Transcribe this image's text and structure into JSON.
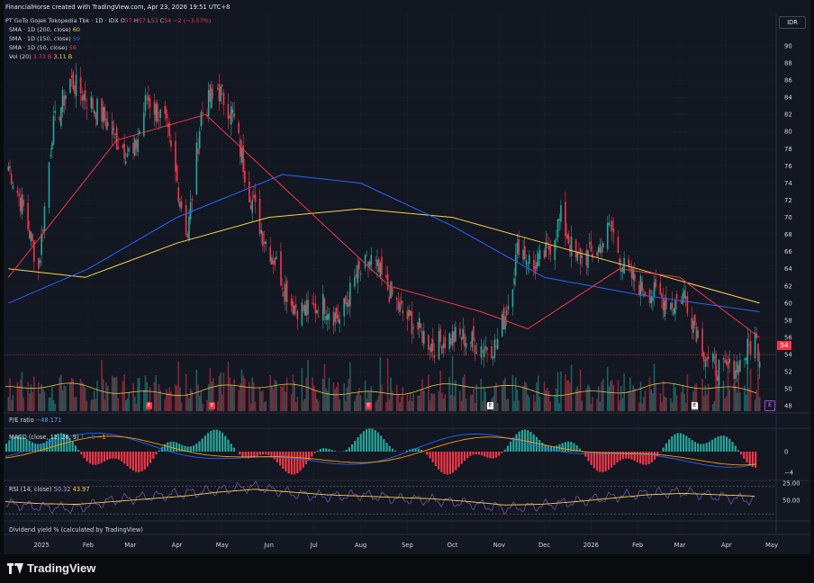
{
  "header": {
    "text": "FinancialHorse created with TradingView.com, Apr 23, 2026 19:51 UTC+8"
  },
  "symbol": {
    "name": "PT GoTo Gojek Tokopedia Tbk · 1D · IDX",
    "o_label": "O",
    "o": "57",
    "h_label": "H",
    "h": "57",
    "l_label": "L",
    "l": "53",
    "c_label": "C",
    "c": "54",
    "change": "−2 (−3.57%)"
  },
  "indicators": {
    "sma200": {
      "label": "SMA · 1D (200, close)",
      "value": "60",
      "color": "#f5d347"
    },
    "sma150": {
      "label": "SMA · 1D (150, close)",
      "value": "59",
      "color": "#2962ff"
    },
    "sma50": {
      "label": "SMA · 1D (50, close)",
      "value": "56",
      "color": "#f23645"
    },
    "vol": {
      "label": "Vol (20)",
      "value1": "3.73 B",
      "value2": "3.11 B"
    }
  },
  "currency": "IDR",
  "last_price": "54",
  "pe": {
    "label": "P/E ratio",
    "value": "−48.171"
  },
  "macd": {
    "label": "MACD (close, 12, 26, 9)",
    "v1": "1",
    "v2": "−0",
    "v3": "−1"
  },
  "rsi": {
    "label": "RSI (14, close)",
    "v1": "50.32",
    "v2": "43.97"
  },
  "dividend": {
    "label": "Dividend yield % (calculated by TradingView)"
  },
  "events": {
    "earnings_letter": "E",
    "axis_letter": "E"
  },
  "logo": {
    "text": "TradingView"
  },
  "colors": {
    "up": "#26a69a",
    "down": "#f23645",
    "sma200": "#f5d347",
    "sma150": "#2962ff",
    "sma50": "#f23645",
    "rsi": "#7e57c2"
  },
  "chart_data": [
    {
      "type": "candlestick",
      "title": "PT GoTo Gojek Tokopedia Tbk · 1D · IDX",
      "y_ticks": [
        48,
        50,
        52,
        54,
        56,
        58,
        60,
        62,
        64,
        66,
        68,
        70,
        72,
        74,
        76,
        78,
        80,
        82,
        84,
        86,
        88,
        90
      ],
      "ylim": [
        46,
        92
      ],
      "x_ticks": [
        "2025",
        "Feb",
        "Mar",
        "Apr",
        "May",
        "Jun",
        "Jul",
        "Aug",
        "Sep",
        "Oct",
        "Nov",
        "Dec",
        "2026",
        "Feb",
        "Mar",
        "Apr",
        "May"
      ],
      "close_series_approx": [
        {
          "date": "2024-12-10",
          "close": 76
        },
        {
          "date": "2024-12-20",
          "close": 71
        },
        {
          "date": "2024-12-30",
          "close": 64
        },
        {
          "date": "2025-01-08",
          "close": 80
        },
        {
          "date": "2025-01-20",
          "close": 86
        },
        {
          "date": "2025-01-30",
          "close": 84
        },
        {
          "date": "2025-02-10",
          "close": 82
        },
        {
          "date": "2025-02-20",
          "close": 79
        },
        {
          "date": "2025-03-03",
          "close": 77
        },
        {
          "date": "2025-03-12",
          "close": 84
        },
        {
          "date": "2025-03-24",
          "close": 81
        },
        {
          "date": "2025-04-08",
          "close": 68
        },
        {
          "date": "2025-04-17",
          "close": 82
        },
        {
          "date": "2025-04-28",
          "close": 85
        },
        {
          "date": "2025-05-08",
          "close": 82
        },
        {
          "date": "2025-05-19",
          "close": 73
        },
        {
          "date": "2025-05-28",
          "close": 68
        },
        {
          "date": "2025-06-05",
          "close": 65
        },
        {
          "date": "2025-06-16",
          "close": 60
        },
        {
          "date": "2025-06-26",
          "close": 59
        },
        {
          "date": "2025-07-08",
          "close": 60
        },
        {
          "date": "2025-07-18",
          "close": 58
        },
        {
          "date": "2025-07-29",
          "close": 63
        },
        {
          "date": "2025-08-08",
          "close": 65
        },
        {
          "date": "2025-08-18",
          "close": 62
        },
        {
          "date": "2025-08-28",
          "close": 59
        },
        {
          "date": "2025-09-08",
          "close": 57
        },
        {
          "date": "2025-09-18",
          "close": 55
        },
        {
          "date": "2025-09-29",
          "close": 56
        },
        {
          "date": "2025-10-08",
          "close": 56
        },
        {
          "date": "2025-10-20",
          "close": 55
        },
        {
          "date": "2025-10-30",
          "close": 55
        },
        {
          "date": "2025-11-07",
          "close": 60
        },
        {
          "date": "2025-11-14",
          "close": 67
        },
        {
          "date": "2025-11-24",
          "close": 64
        },
        {
          "date": "2025-12-03",
          "close": 66
        },
        {
          "date": "2025-12-12",
          "close": 70
        },
        {
          "date": "2025-12-22",
          "close": 65
        },
        {
          "date": "2026-01-05",
          "close": 66
        },
        {
          "date": "2026-01-14",
          "close": 69
        },
        {
          "date": "2026-01-23",
          "close": 64
        },
        {
          "date": "2026-02-03",
          "close": 62
        },
        {
          "date": "2026-02-12",
          "close": 61
        },
        {
          "date": "2026-02-24",
          "close": 60
        },
        {
          "date": "2026-03-04",
          "close": 61
        },
        {
          "date": "2026-03-12",
          "close": 57
        },
        {
          "date": "2026-03-20",
          "close": 53
        },
        {
          "date": "2026-03-31",
          "close": 52
        },
        {
          "date": "2026-04-10",
          "close": 53
        },
        {
          "date": "2026-04-20",
          "close": 56
        },
        {
          "date": "2026-04-23",
          "close": 54
        }
      ],
      "sma200_approx": [
        {
          "date": "2024-12-10",
          "v": 64
        },
        {
          "date": "2025-01-30",
          "v": 63
        },
        {
          "date": "2025-04-01",
          "v": 67
        },
        {
          "date": "2025-06-01",
          "v": 70
        },
        {
          "date": "2025-08-01",
          "v": 71
        },
        {
          "date": "2025-10-01",
          "v": 70
        },
        {
          "date": "2025-12-01",
          "v": 67
        },
        {
          "date": "2026-02-01",
          "v": 64
        },
        {
          "date": "2026-04-23",
          "v": 60
        }
      ],
      "sma150_approx": [
        {
          "date": "2024-12-10",
          "v": 60
        },
        {
          "date": "2025-02-01",
          "v": 64
        },
        {
          "date": "2025-04-01",
          "v": 70
        },
        {
          "date": "2025-06-10",
          "v": 75
        },
        {
          "date": "2025-08-01",
          "v": 74
        },
        {
          "date": "2025-10-01",
          "v": 69
        },
        {
          "date": "2025-12-01",
          "v": 63
        },
        {
          "date": "2026-02-01",
          "v": 61
        },
        {
          "date": "2026-04-23",
          "v": 59
        }
      ],
      "sma50_approx": [
        {
          "date": "2024-12-10",
          "v": 63
        },
        {
          "date": "2025-02-20",
          "v": 79
        },
        {
          "date": "2025-04-20",
          "v": 82
        },
        {
          "date": "2025-06-20",
          "v": 72
        },
        {
          "date": "2025-08-20",
          "v": 62
        },
        {
          "date": "2025-10-20",
          "v": 59
        },
        {
          "date": "2025-11-20",
          "v": 57
        },
        {
          "date": "2026-01-20",
          "v": 64
        },
        {
          "date": "2026-03-01",
          "v": 63
        },
        {
          "date": "2026-04-23",
          "v": 56
        }
      ]
    },
    {
      "type": "line",
      "title": "RSI (14, close)",
      "y_ticks": [
        25.0,
        50.0
      ],
      "ylim": [
        20,
        75
      ],
      "series": [
        {
          "name": "RSI",
          "values_approx": [
            55,
            60,
            62,
            50,
            45,
            40,
            35,
            30,
            40,
            45,
            42,
            48,
            50,
            55,
            62,
            58,
            52,
            45,
            40,
            38,
            45,
            50
          ]
        },
        {
          "name": "RSI-based MA",
          "values_approx": [
            52,
            55,
            56,
            52,
            48,
            44,
            38,
            34,
            38,
            42,
            44,
            46,
            48,
            52,
            57,
            56,
            52,
            47,
            42,
            40,
            42,
            44
          ]
        }
      ]
    },
    {
      "type": "bar",
      "title": "MACD (close, 12, 26, 9)",
      "y_ticks": [
        -4,
        0
      ],
      "ylim": [
        -6,
        4
      ]
    }
  ]
}
